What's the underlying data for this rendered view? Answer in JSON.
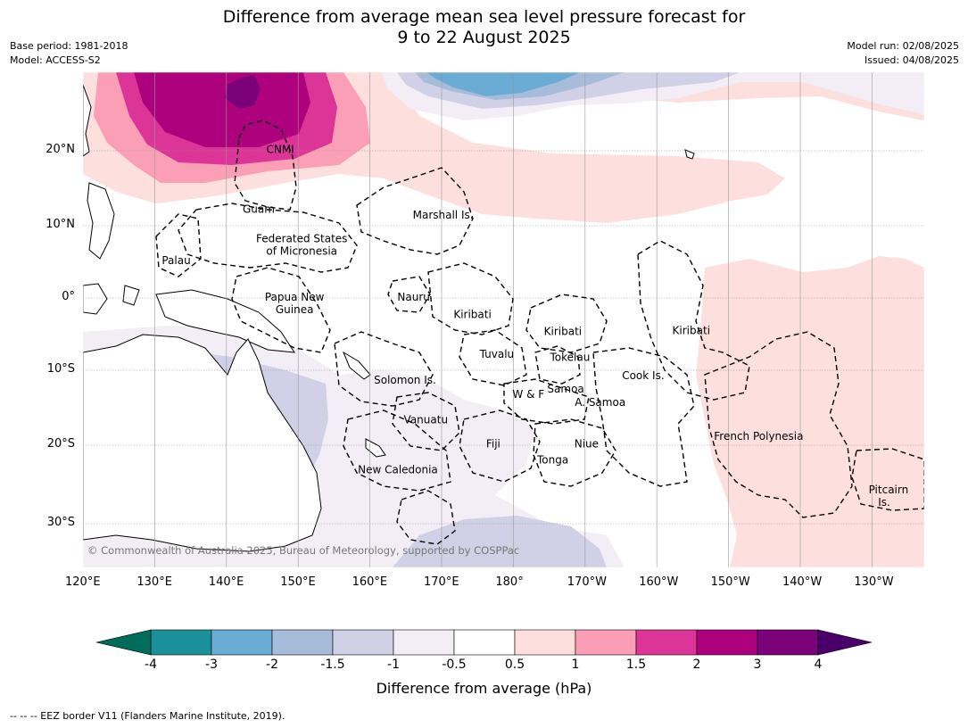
{
  "title_line1": "Difference from average mean sea level pressure forecast for",
  "title_line2": "9 to 22 August 2025",
  "base_period": "Base period: 1981-2018",
  "model": "Model: ACCESS-S2",
  "model_run": "Model run: 02/08/2025",
  "issued": "Issued: 04/08/2025",
  "credit": "© Commonwealth of Australia 2025, Bureau of Meteorology, supported by COSPPac",
  "footer": "-- -- -- EEZ border V11 (Flanders Marine Institute, 2019).",
  "map": {
    "lon_labels": [
      "120°E",
      "130°E",
      "140°E",
      "150°E",
      "160°E",
      "170°E",
      "180°",
      "170°W",
      "160°W",
      "150°W",
      "140°W",
      "130°W"
    ],
    "lat_labels": [
      "20°N",
      "10°N",
      "0°",
      "10°S",
      "20°S",
      "30°S"
    ],
    "regions": [
      {
        "name": "CNMI",
        "lon": 147.5,
        "lat": 20.2
      },
      {
        "name": "Guam",
        "lon": 144.5,
        "lat": 12.2
      },
      {
        "name": "Marshall Is.",
        "lon": 170.2,
        "lat": 11.4
      },
      {
        "name": "Palau",
        "lon": 133,
        "lat": 5.2
      },
      {
        "name": "Federated States",
        "lon": 150.5,
        "lat": 8.2
      },
      {
        "name": "of Micronesia",
        "lon": 150.5,
        "lat": 6.5
      },
      {
        "name": "Papua New",
        "lon": 149.5,
        "lat": 0.1
      },
      {
        "name": "Guinea",
        "lon": 149.5,
        "lat": -1.6
      },
      {
        "name": "Nauru",
        "lon": 166.1,
        "lat": 0.1
      },
      {
        "name": "Kiribati",
        "lon": 174.3,
        "lat": -2.3
      },
      {
        "name": "Kiribati",
        "lon": -173.1,
        "lat": -4.6
      },
      {
        "name": "Kiribati",
        "lon": -155.2,
        "lat": -4.5
      },
      {
        "name": "Tuvalu",
        "lon": 177.7,
        "lat": -7.8
      },
      {
        "name": "Tokelau",
        "lon": -172.1,
        "lat": -8.2
      },
      {
        "name": "Cook Is.",
        "lon": -161.9,
        "lat": -10.7
      },
      {
        "name": "Solomon Is.",
        "lon": 164.9,
        "lat": -11.3
      },
      {
        "name": "Samoa",
        "lon": -172.7,
        "lat": -12.5
      },
      {
        "name": "W & F",
        "lon": -177.9,
        "lat": -13.2
      },
      {
        "name": "A. Samoa",
        "lon": -167.9,
        "lat": -14.3
      },
      {
        "name": "Vanuatu",
        "lon": 167.8,
        "lat": -16.6
      },
      {
        "name": "Fiji",
        "lon": 177.2,
        "lat": -19.8
      },
      {
        "name": "Niue",
        "lon": -169.8,
        "lat": -19.8
      },
      {
        "name": "French Polynesia",
        "lon": -145.8,
        "lat": -18.8
      },
      {
        "name": "Tonga",
        "lon": -174.5,
        "lat": -21.9
      },
      {
        "name": "New Caledonia",
        "lon": 163.9,
        "lat": -23.1
      },
      {
        "name": "Pitcairn",
        "lon": -127.7,
        "lat": -25.7
      },
      {
        "name": "Is.",
        "lon": -128.3,
        "lat": -27.3
      }
    ]
  },
  "colorbar": {
    "label": "Difference from average (hPa)",
    "ticks": [
      "-4",
      "-3",
      "-2",
      "-1.5",
      "-1",
      "-0.5",
      "0.5",
      "1",
      "1.5",
      "2",
      "3",
      "4"
    ],
    "colors": [
      "#1a9199",
      "#6aacd4",
      "#a7bcdb",
      "#d0d1e6",
      "#f3eef6",
      "#ffffff",
      "#fde0dd",
      "#fa9fb5",
      "#dd3497",
      "#ae017e",
      "#7a0177"
    ],
    "extend_low_color": "#016c59",
    "extend_high_color": "#49006a"
  }
}
